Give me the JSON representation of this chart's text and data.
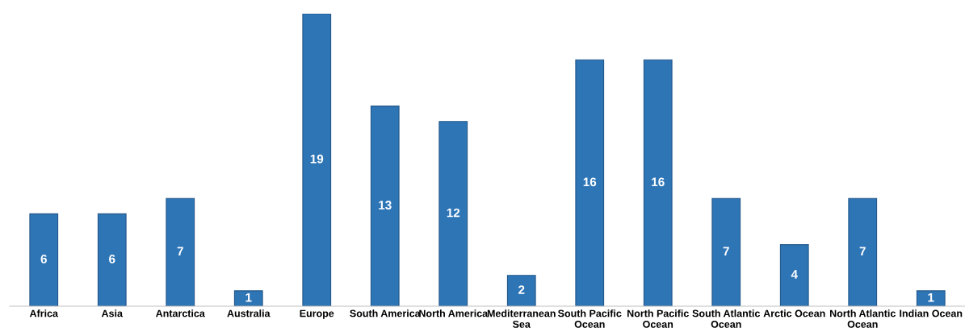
{
  "chart_data": {
    "type": "bar",
    "categories": [
      "Africa",
      "Asia",
      "Antarctica",
      "Australia",
      "Europe",
      "South America",
      "North America",
      "Mediterranean Sea",
      "South Pacific Ocean",
      "North Pacific Ocean",
      "South Atlantic Ocean",
      "Arctic Ocean",
      "North Atlantic Ocean",
      "Indian Ocean"
    ],
    "values": [
      6,
      6,
      7,
      1,
      19,
      13,
      12,
      2,
      16,
      16,
      7,
      4,
      7,
      1
    ],
    "color": "#2e75b6",
    "data_labels": true,
    "grid": false,
    "legend": false
  }
}
